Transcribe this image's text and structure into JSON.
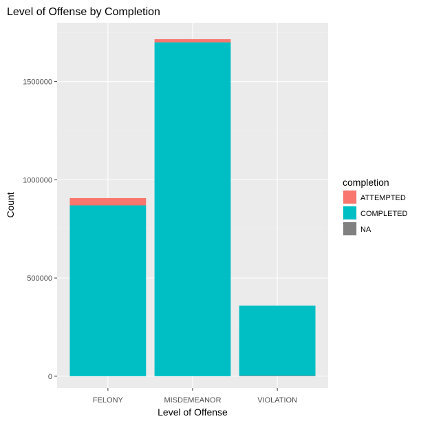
{
  "chart_data": {
    "type": "bar",
    "stacked": true,
    "title": "Level of Offense by Completion",
    "xlabel": "Level of Offense",
    "ylabel": "Count",
    "categories": [
      "FELONY",
      "MISDEMEANOR",
      "VIOLATION"
    ],
    "series": [
      {
        "name": "NA",
        "color": "#808080",
        "values": [
          0,
          0,
          3000
        ]
      },
      {
        "name": "COMPLETED",
        "color": "#00BFC4",
        "values": [
          870000,
          1700000,
          356000
        ]
      },
      {
        "name": "ATTEMPTED",
        "color": "#F8766D",
        "values": [
          37000,
          16000,
          0
        ]
      }
    ],
    "stack_order_bottom_to_top": [
      "NA",
      "COMPLETED",
      "ATTEMPTED"
    ],
    "y_ticks": [
      0,
      500000,
      1000000,
      1500000
    ],
    "y_tick_labels": [
      "0",
      "500000",
      "1000000",
      "1500000"
    ],
    "ylim": [
      -60000,
      1800000
    ],
    "grid": true,
    "legend": {
      "title": "completion",
      "placement": "right",
      "items": [
        "ATTEMPTED",
        "COMPLETED",
        "NA"
      ]
    },
    "colors": {
      "panel_background": "#EBEBEB",
      "grid_major": "#FFFFFF",
      "grid_minor": "#F2F2F2"
    }
  }
}
